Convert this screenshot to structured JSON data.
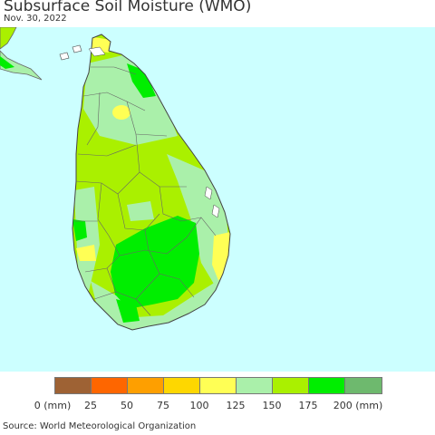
{
  "title": "Subsurface Soil Moisture (WMO)",
  "date": "Nov. 30, 2022",
  "source": "Source: World Meteorological Organization",
  "colors": {
    "ocean": "#ccffff",
    "border": "#666666"
  },
  "legend": {
    "swatches": [
      "#9e6234",
      "#fe6600",
      "#fe9f00",
      "#fed700",
      "#ffff55",
      "#aaf0aa",
      "#aaf000",
      "#00ee00",
      "#6eb96e"
    ],
    "ticks": [
      "0 (mm)",
      "25",
      "50",
      "75",
      "100",
      "125",
      "150",
      "175",
      "200 (mm)"
    ]
  }
}
